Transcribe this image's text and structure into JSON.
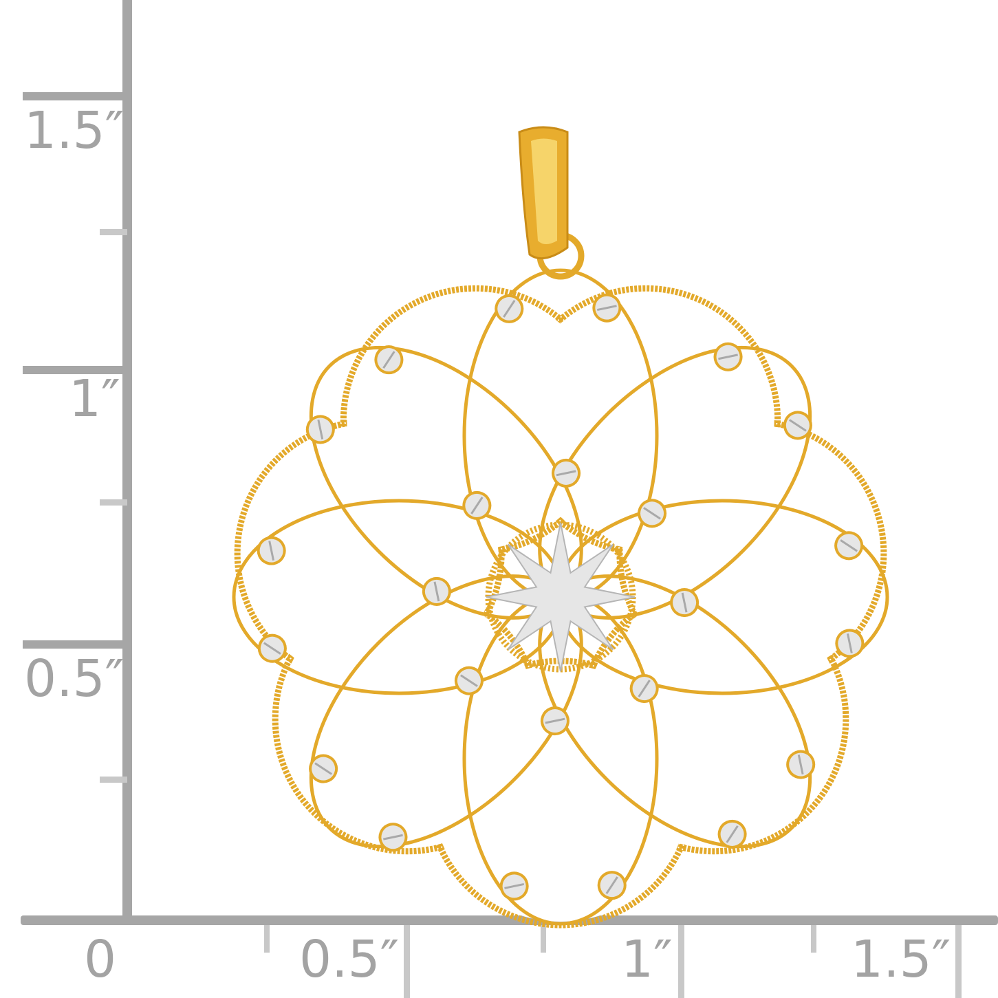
{
  "ruler": {
    "vertical_labels": [
      "1.5″",
      "1″",
      "0.5″"
    ],
    "horizontal_labels": [
      "0",
      "0.5″",
      "1″",
      "1.5″"
    ],
    "color": "#a6a6a6",
    "tick_color": "#c8c8c8"
  },
  "pendant": {
    "gold_color": "#e3a92a",
    "silver_color": "#e6e6e6",
    "petal_count": 8
  }
}
